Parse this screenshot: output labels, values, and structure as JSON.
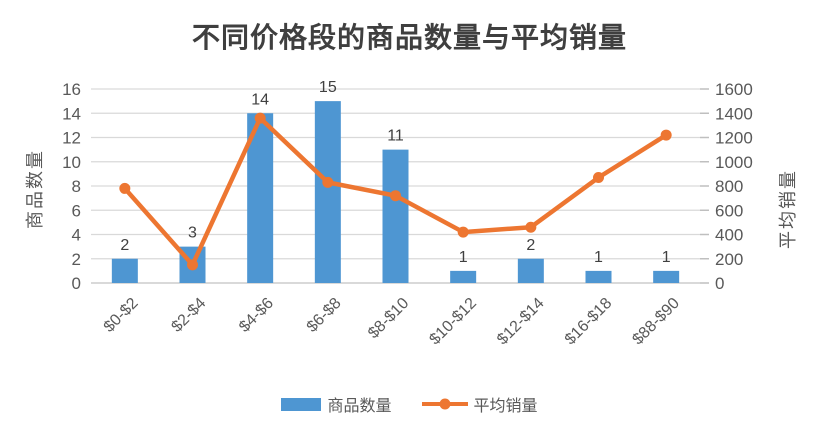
{
  "chart_data": {
    "type": "bar",
    "subtype": "combo-bar-line-dual-axis",
    "title": "不同价格段的商品数量与平均销量",
    "categories": [
      "$0-$2",
      "$2-$4",
      "$4-$6",
      "$6-$8",
      "$8-$10",
      "$10-$12",
      "$12-$14",
      "$16-$18",
      "$88-$90"
    ],
    "series": [
      {
        "name": "商品数量",
        "type": "bar",
        "axis": "left",
        "color": "#4e96d2",
        "values": [
          2,
          3,
          14,
          15,
          11,
          1,
          2,
          1,
          1
        ],
        "data_labels": [
          2,
          3,
          14,
          15,
          11,
          1,
          2,
          1,
          1
        ]
      },
      {
        "name": "平均销量",
        "type": "line",
        "axis": "right",
        "color": "#ed7631",
        "values": [
          780,
          150,
          1360,
          830,
          720,
          420,
          460,
          870,
          1220
        ]
      }
    ],
    "axes": {
      "left": {
        "label": "商品数量",
        "min": 0,
        "max": 16,
        "ticks": [
          0,
          2,
          4,
          6,
          8,
          10,
          12,
          14,
          16
        ]
      },
      "right": {
        "label": "平均销量",
        "min": 0,
        "max": 1600,
        "ticks": [
          0,
          200,
          400,
          600,
          800,
          1000,
          1200,
          1400,
          1600
        ]
      }
    },
    "grid": "horizontal",
    "legend_position": "bottom",
    "colors": {
      "gridline": "#d9d9d9",
      "axis_line": "#d9d9d9",
      "tick_mark": "#bfbfbf",
      "tick_text": "#595959",
      "data_label_text": "#404040",
      "title_text": "#3f3f3f"
    }
  },
  "legend": {
    "items": [
      {
        "label": "商品数量",
        "swatch": "bar"
      },
      {
        "label": "平均销量",
        "swatch": "line-dot"
      }
    ]
  }
}
